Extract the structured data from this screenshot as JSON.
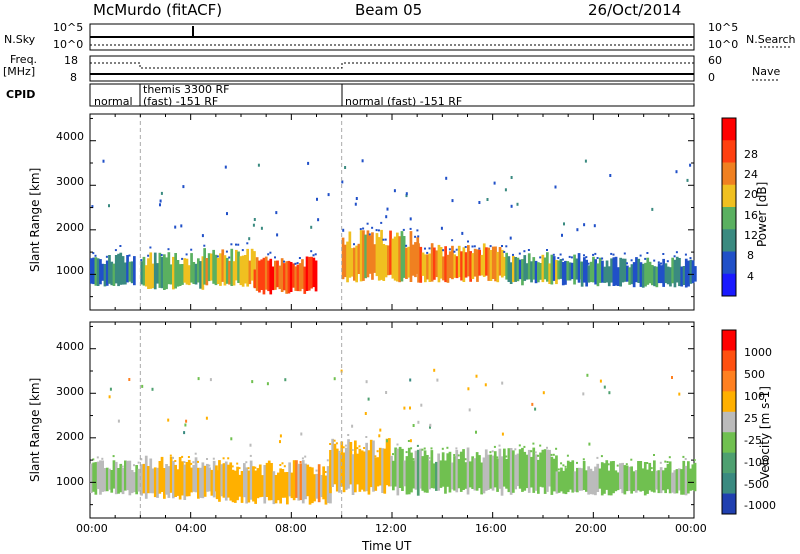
{
  "header": {
    "radar": "McMurdo (fitACF)",
    "beam": "Beam 05",
    "date": "26/Oct/2014"
  },
  "top_panels": {
    "nsky_label": "N.Sky",
    "nsky_ticks": [
      "10^5",
      "10^0"
    ],
    "nsearch_label": "N.Search",
    "nsearch_ticks": [
      "10^5",
      "10^0"
    ],
    "freq_label": "Freq.",
    "freq_unit": "[MHz]",
    "freq_ticks": [
      "18",
      "8"
    ],
    "nave_label": "Nave",
    "nave_ticks": [
      "60",
      "0"
    ],
    "cpid_label": "CPID",
    "cpid_segments": [
      {
        "label1": "normal",
        "label2": ""
      },
      {
        "label1": "themis 3300 RF",
        "label2": "(fast) -151 RF"
      },
      {
        "label1": "normal (fast) -151 RF",
        "label2": ""
      }
    ]
  },
  "axes": {
    "xlabel": "Time UT",
    "ylabel": "Slant Range [km]",
    "x_ticks": [
      "00:00",
      "04:00",
      "08:00",
      "12:00",
      "16:00",
      "20:00",
      "00:00"
    ],
    "y_ticks": [
      "1000",
      "2000",
      "3000",
      "4000"
    ]
  },
  "colorbars": {
    "power": {
      "label": "Power [dB]",
      "ticks": [
        "4",
        "8",
        "12",
        "16",
        "20",
        "24",
        "28"
      ],
      "colors": [
        "#1a1aff",
        "#2050c8",
        "#3a8a80",
        "#5ab060",
        "#f0c020",
        "#f08020",
        "#ff4010",
        "#ff0000"
      ]
    },
    "velocity": {
      "label": "Velocity [m s-1]",
      "ticks": [
        "1000",
        "500",
        "100",
        "25",
        "-25",
        "-100",
        "-500",
        "-1000"
      ],
      "colors": [
        "#2040b0",
        "#3a8a80",
        "#4ea070",
        "#70c050",
        "#bbbbbb",
        "#ffb000",
        "#ff8020",
        "#ff5010",
        "#ff0000"
      ]
    }
  },
  "chart_data": [
    {
      "type": "heatmap",
      "title": "Power [dB]",
      "xlabel": "Time UT",
      "ylabel": "Slant Range [km]",
      "xlim": [
        0,
        24
      ],
      "ylim": [
        200,
        4600
      ],
      "clim": [
        0,
        32
      ],
      "bands": [
        {
          "t0": 0.0,
          "t1": 1.8,
          "r0": 700,
          "r1": 1500,
          "level": 10
        },
        {
          "t0": 2.0,
          "t1": 4.5,
          "r0": 650,
          "r1": 1500,
          "level": 14
        },
        {
          "t0": 4.5,
          "t1": 6.5,
          "r0": 700,
          "r1": 1600,
          "level": 18
        },
        {
          "t0": 6.5,
          "t1": 9.0,
          "r0": 550,
          "r1": 1400,
          "level": 26
        },
        {
          "t0": 10.0,
          "t1": 13.0,
          "r0": 800,
          "r1": 2000,
          "level": 20
        },
        {
          "t0": 13.0,
          "t1": 16.5,
          "r0": 800,
          "r1": 1700,
          "level": 22
        },
        {
          "t0": 16.5,
          "t1": 19.5,
          "r0": 750,
          "r1": 1500,
          "level": 12
        },
        {
          "t0": 19.5,
          "t1": 24.0,
          "r0": 700,
          "r1": 1400,
          "level": 10
        }
      ]
    },
    {
      "type": "heatmap",
      "title": "Velocity [m s-1]",
      "xlabel": "Time UT",
      "ylabel": "Slant Range [km]",
      "xlim": [
        0,
        24
      ],
      "ylim": [
        200,
        4600
      ],
      "clim": [
        -1000,
        1000
      ],
      "bands": [
        {
          "t0": 0.0,
          "t1": 2.0,
          "r0": 700,
          "r1": 1500,
          "level": -100
        },
        {
          "t0": 2.0,
          "t1": 5.0,
          "r0": 600,
          "r1": 1600,
          "level": 100
        },
        {
          "t0": 5.0,
          "t1": 9.5,
          "r0": 500,
          "r1": 1500,
          "level": 200
        },
        {
          "t0": 9.5,
          "t1": 12.0,
          "r0": 700,
          "r1": 2000,
          "level": 150
        },
        {
          "t0": 12.0,
          "t1": 18.5,
          "r0": 700,
          "r1": 1800,
          "level": -200
        },
        {
          "t0": 18.5,
          "t1": 24.0,
          "r0": 700,
          "r1": 1500,
          "level": -150
        }
      ]
    }
  ]
}
